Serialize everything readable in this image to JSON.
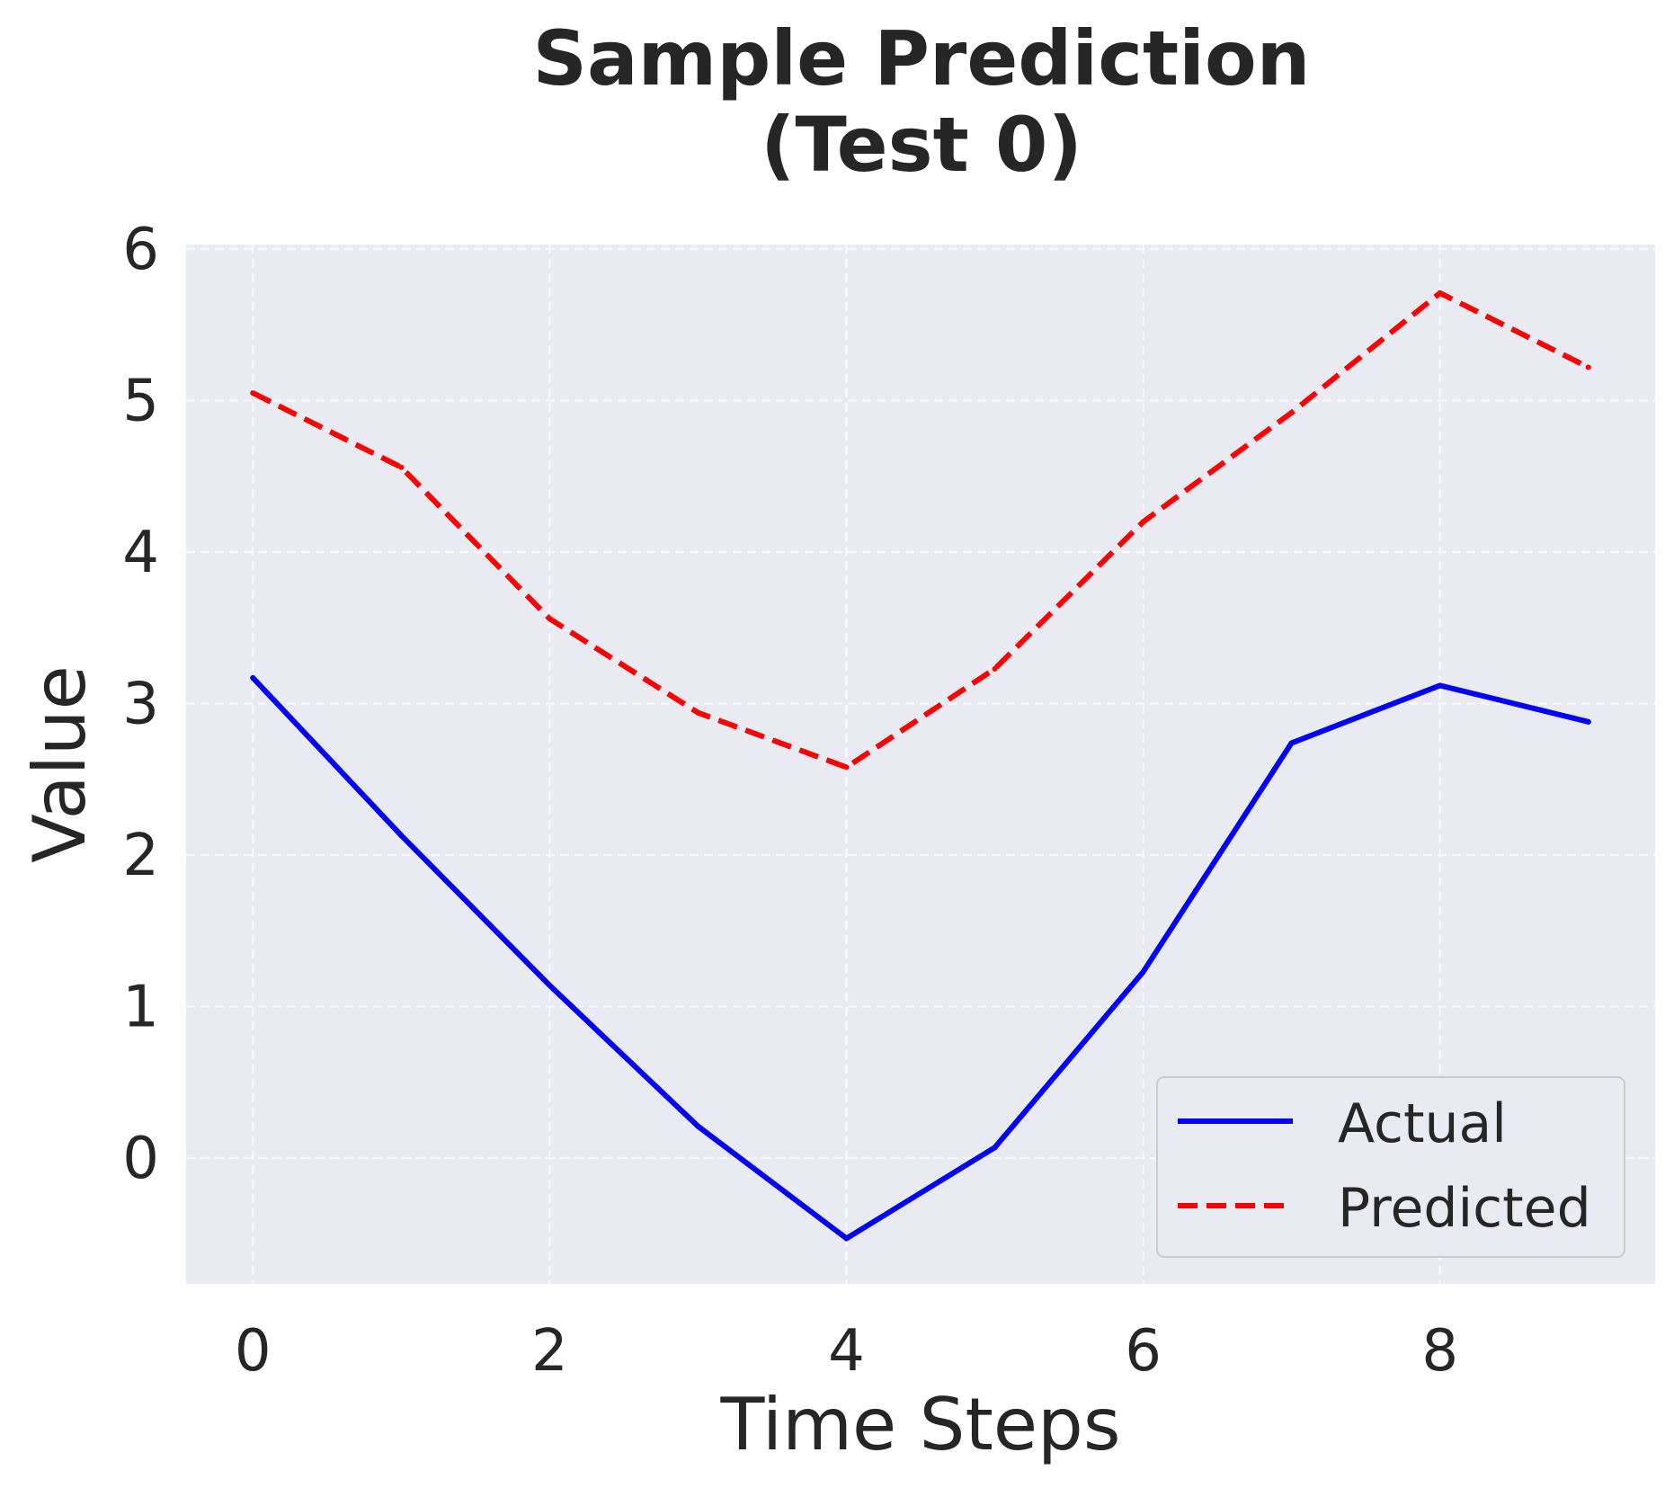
{
  "chart_data": {
    "type": "line",
    "title_lines": [
      "Sample Prediction",
      "(Test 0)"
    ],
    "xlabel": "Time Steps",
    "ylabel": "Value",
    "x": [
      0,
      1,
      2,
      3,
      4,
      5,
      6,
      7,
      8,
      9
    ],
    "xlim": [
      -0.45,
      9.45
    ],
    "ylim": [
      -0.83,
      6.03
    ],
    "xticks": [
      0,
      2,
      4,
      6,
      8
    ],
    "yticks": [
      0,
      1,
      2,
      3,
      4,
      5,
      6
    ],
    "grid": true,
    "legend_position": "lower-right",
    "background": "#eaeaf2",
    "series": [
      {
        "name": "Actual",
        "color": "#0000ff",
        "style": "solid",
        "values": [
          3.17,
          2.13,
          1.14,
          0.21,
          -0.53,
          0.07,
          1.23,
          2.74,
          3.12,
          2.88
        ]
      },
      {
        "name": "Predicted",
        "color": "#ff0000",
        "style": "dashed",
        "values": [
          5.05,
          4.56,
          3.56,
          2.94,
          2.58,
          3.23,
          4.2,
          4.92,
          5.71,
          5.22
        ]
      }
    ]
  }
}
